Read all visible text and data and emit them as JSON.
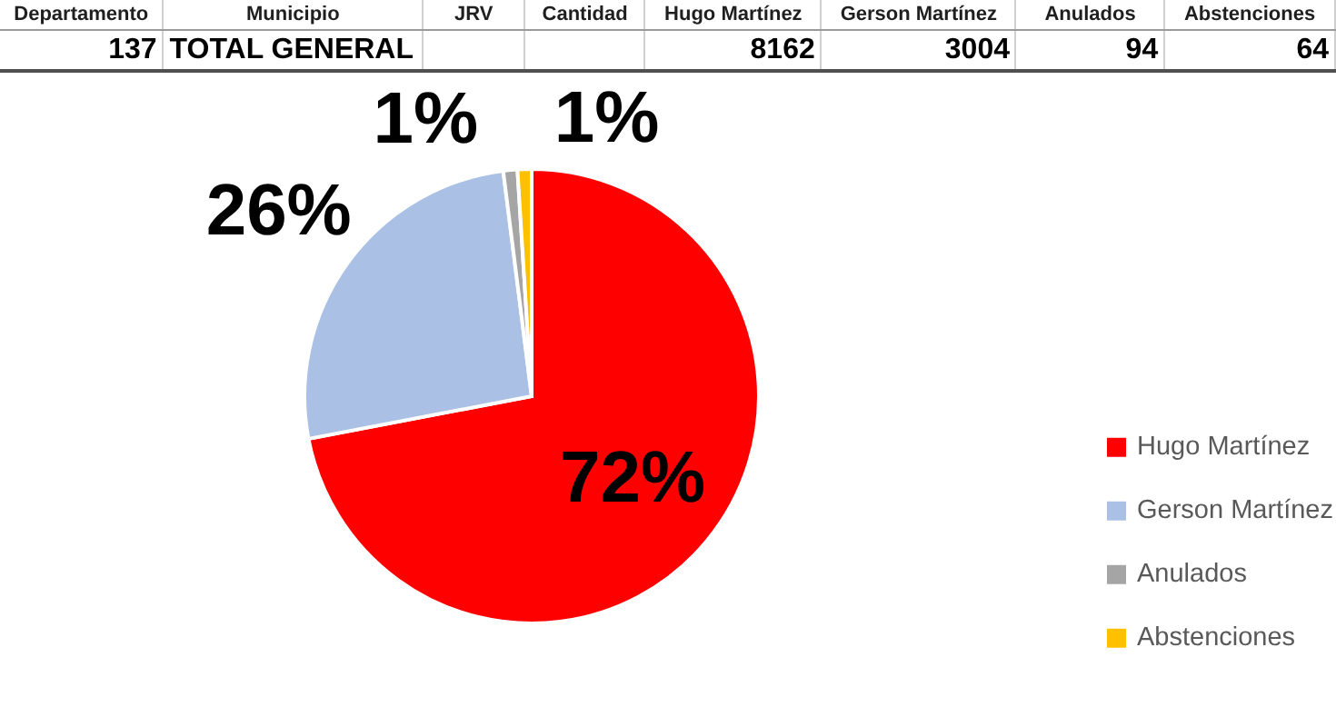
{
  "chart_data": {
    "type": "pie",
    "categories": [
      "Hugo Martínez",
      "Gerson Martínez",
      "Anulados",
      "Abstenciones"
    ],
    "values": [
      72,
      26,
      1,
      1
    ],
    "colors": [
      "#ff0000",
      "#aac0e4",
      "#a5a5a5",
      "#ffc000"
    ],
    "value_labels": [
      "72%",
      "26%",
      "1%",
      "1%"
    ],
    "legend": "right",
    "annotations": [
      "Departamento",
      "Municipio",
      "JRV",
      "Cantidad",
      "137",
      "TOTAL GENERAL",
      "8162",
      "3004",
      "94",
      "64"
    ]
  }
}
